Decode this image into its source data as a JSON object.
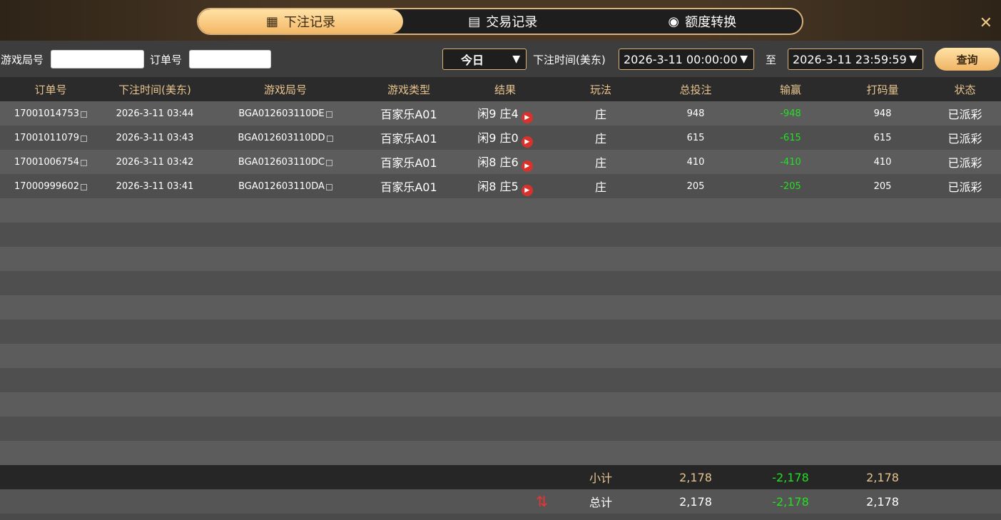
{
  "tabs": [
    {
      "label": "下注记录",
      "icon": "calendar-icon"
    },
    {
      "label": "交易记录",
      "icon": "clipboard-icon"
    },
    {
      "label": "额度转换",
      "icon": "coins-icon"
    }
  ],
  "filter": {
    "round_label": "游戏局号",
    "round_value": "",
    "order_label": "订单号",
    "order_value": "",
    "period": "今日",
    "time_label": "下注时间(美东)",
    "start": "2026-3-11 00:00:00",
    "to": "至",
    "end": "2026-3-11 23:59:59",
    "query": "查询"
  },
  "columns": [
    "订单号",
    "下注时间(美东)",
    "游戏局号",
    "游戏类型",
    "结果",
    "玩法",
    "总投注",
    "输赢",
    "打码量",
    "状态"
  ],
  "rows": [
    {
      "order": "17001014753",
      "time": "2026-3-11 03:44",
      "round": "BGA012603110DE",
      "game": "百家乐A01",
      "result": "闲9 庄4",
      "play": "庄",
      "bet": "948",
      "win": "-948",
      "valid": "948",
      "status": "已派彩"
    },
    {
      "order": "17001011079",
      "time": "2026-3-11 03:43",
      "round": "BGA012603110DD",
      "game": "百家乐A01",
      "result": "闲9 庄0",
      "play": "庄",
      "bet": "615",
      "win": "-615",
      "valid": "615",
      "status": "已派彩"
    },
    {
      "order": "17001006754",
      "time": "2026-3-11 03:42",
      "round": "BGA012603110DC",
      "game": "百家乐A01",
      "result": "闲8 庄6",
      "play": "庄",
      "bet": "410",
      "win": "-410",
      "valid": "410",
      "status": "已派彩"
    },
    {
      "order": "17000999602",
      "time": "2026-3-11 03:41",
      "round": "BGA012603110DA",
      "game": "百家乐A01",
      "result": "闲8 庄5",
      "play": "庄",
      "bet": "205",
      "win": "-205",
      "valid": "205",
      "status": "已派彩"
    }
  ],
  "subtotal": {
    "label": "小计",
    "bet": "2,178",
    "win": "-2,178",
    "valid": "2,178"
  },
  "total": {
    "label": "总计",
    "bet": "2,178",
    "win": "-2,178",
    "valid": "2,178"
  }
}
